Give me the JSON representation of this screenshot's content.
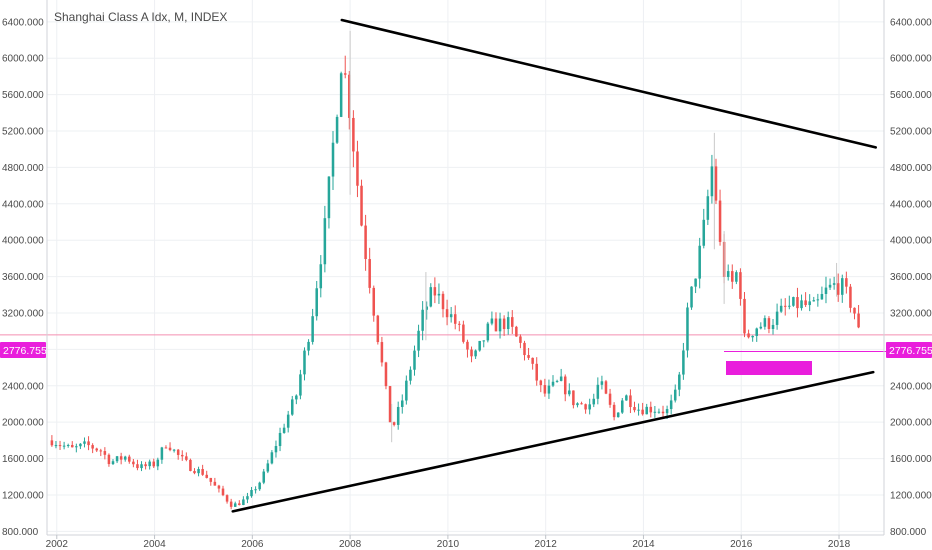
{
  "chart_data": {
    "type": "candlestick",
    "title": "Shanghai Class A Idx, M, INDEX",
    "ylim": [
      760,
      6640
    ],
    "xlim": [
      2001.8,
      2018.92
    ],
    "y_ticks": [
      "800.000",
      "1200.000",
      "1600.000",
      "2000.000",
      "2400.000",
      "2800.000",
      "3200.000",
      "3600.000",
      "4000.000",
      "4400.000",
      "4800.000",
      "5200.000",
      "5600.000",
      "6000.000",
      "6400.000"
    ],
    "x_ticks": [
      "2002",
      "2004",
      "2006",
      "2008",
      "2010",
      "2012",
      "2014",
      "2016",
      "2018"
    ],
    "last_price": "2776.755",
    "current_line_value": 2960,
    "colors": {
      "up": "#26a69a",
      "down": "#ef5350",
      "trendline": "#000000",
      "badge": "#e91edc",
      "current_line": "#f48fb1",
      "grid": "#eef0f3"
    },
    "trendlines": [
      {
        "x1": 2007.83,
        "y1": 6420,
        "x2": 2018.75,
        "y2": 5020
      },
      {
        "x1": 2005.6,
        "y1": 1020,
        "x2": 2018.7,
        "y2": 2550
      }
    ],
    "note_label": "",
    "anchors": [
      [
        2001.9,
        1800
      ],
      [
        2002.3,
        1700
      ],
      [
        2002.6,
        1750
      ],
      [
        2002.9,
        1690
      ],
      [
        2003.1,
        1560
      ],
      [
        2003.4,
        1620
      ],
      [
        2003.7,
        1500
      ],
      [
        2004.0,
        1540
      ],
      [
        2004.25,
        1780
      ],
      [
        2004.5,
        1620
      ],
      [
        2004.75,
        1500
      ],
      [
        2005.0,
        1440
      ],
      [
        2005.3,
        1250
      ],
      [
        2005.6,
        1080
      ],
      [
        2005.9,
        1160
      ],
      [
        2006.2,
        1380
      ],
      [
        2006.5,
        1780
      ],
      [
        2006.9,
        2300
      ],
      [
        2007.2,
        3100
      ],
      [
        2007.5,
        4200
      ],
      [
        2007.83,
        6050
      ],
      [
        2008.0,
        5400
      ],
      [
        2008.25,
        4100
      ],
      [
        2008.55,
        3000
      ],
      [
        2008.85,
        1900
      ],
      [
        2009.1,
        2300
      ],
      [
        2009.5,
        3200
      ],
      [
        2009.7,
        3450
      ],
      [
        2009.9,
        3300
      ],
      [
        2010.2,
        3050
      ],
      [
        2010.5,
        2650
      ],
      [
        2010.85,
        3050
      ],
      [
        2011.2,
        3100
      ],
      [
        2011.6,
        2750
      ],
      [
        2011.95,
        2300
      ],
      [
        2012.3,
        2450
      ],
      [
        2012.6,
        2200
      ],
      [
        2012.95,
        2200
      ],
      [
        2013.1,
        2450
      ],
      [
        2013.4,
        2050
      ],
      [
        2013.6,
        2300
      ],
      [
        2013.9,
        2150
      ],
      [
        2014.2,
        2150
      ],
      [
        2014.5,
        2120
      ],
      [
        2014.7,
        2350
      ],
      [
        2014.9,
        3200
      ],
      [
        2015.2,
        4000
      ],
      [
        2015.4,
        4800
      ],
      [
        2015.5,
        4400
      ],
      [
        2015.6,
        3700
      ],
      [
        2015.8,
        3500
      ],
      [
        2015.95,
        3700
      ],
      [
        2016.05,
        2900
      ],
      [
        2016.3,
        3050
      ],
      [
        2016.6,
        3100
      ],
      [
        2016.9,
        3250
      ],
      [
        2017.2,
        3300
      ],
      [
        2017.5,
        3250
      ],
      [
        2017.75,
        3450
      ],
      [
        2017.9,
        3500
      ],
      [
        2018.05,
        3500
      ],
      [
        2018.3,
        3250
      ],
      [
        2018.42,
        2940
      ]
    ],
    "spikes": [
      {
        "x": 2008.0,
        "high": 6300,
        "low": 4500
      },
      {
        "x": 2015.45,
        "high": 5180,
        "low": 3900
      },
      {
        "x": 2015.65,
        "high": 4100,
        "low": 3300
      },
      {
        "x": 2009.55,
        "high": 3650,
        "low": 2900
      },
      {
        "x": 2017.95,
        "high": 3750,
        "low": 3380
      },
      {
        "x": 2008.85,
        "high": 2200,
        "low": 1780
      }
    ]
  }
}
